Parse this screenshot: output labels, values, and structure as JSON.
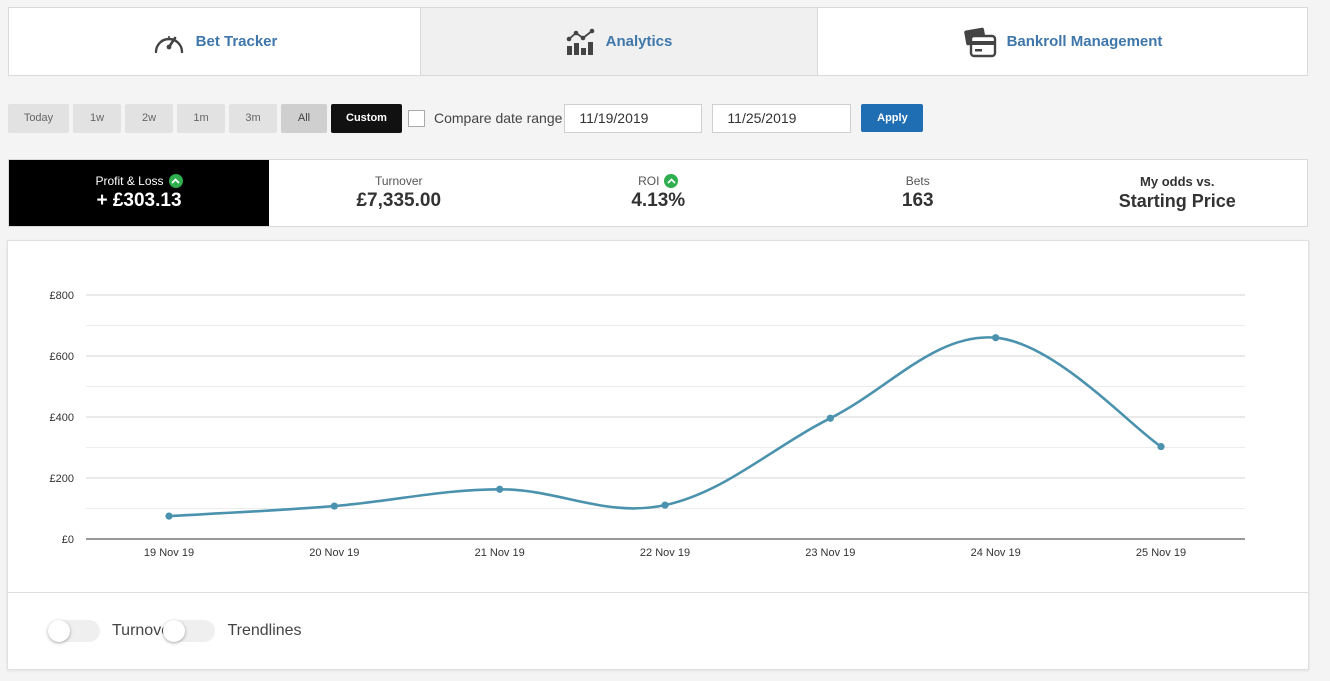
{
  "nav": {
    "tabs": [
      {
        "label": "Bet Tracker",
        "icon": "speedometer-icon"
      },
      {
        "label": "Analytics",
        "icon": "analytics-chart-icon"
      },
      {
        "label": "Bankroll Management",
        "icon": "wallet-cards-icon"
      }
    ],
    "active_tab": "Analytics",
    "link_color": "#3f77ab"
  },
  "filters": {
    "ranges": [
      "Today",
      "1w",
      "2w",
      "1m",
      "3m",
      "All",
      "Custom"
    ],
    "selected": "Custom",
    "compare_label": "Compare date range",
    "compare_checked": false,
    "date_from": "11/19/2019",
    "date_to": "11/25/2019",
    "apply_label": "Apply",
    "apply_color": "#1f6eb3"
  },
  "stats": {
    "profit_loss": {
      "label": "Profit & Loss",
      "value": "+ £303.13",
      "trend": "up"
    },
    "turnover": {
      "label": "Turnover",
      "value": "£7,335.00"
    },
    "roi": {
      "label": "ROI",
      "value": "4.13%",
      "trend": "up"
    },
    "bets": {
      "label": "Bets",
      "value": "163"
    },
    "odds": {
      "line1": "My odds vs.",
      "line2": "Starting Price"
    },
    "positive_color": "#2fae4f"
  },
  "chart_data": {
    "type": "line",
    "x": [
      "19 Nov 19",
      "20 Nov 19",
      "21 Nov 19",
      "22 Nov 19",
      "23 Nov 19",
      "24 Nov 19",
      "25 Nov 19"
    ],
    "series": [
      {
        "values": [
          75,
          108,
          163,
          111,
          396,
          660,
          303
        ],
        "color": "#4a92ad"
      }
    ],
    "ylim": [
      0,
      800
    ],
    "yticks": [
      0,
      200,
      400,
      600,
      800
    ],
    "ytick_labels": [
      "£0",
      "£200",
      "£400",
      "£600",
      "£800"
    ],
    "grid": true,
    "smooth": true
  },
  "toggles": [
    {
      "label": "Turnover",
      "on": false
    },
    {
      "label": "Trendlines",
      "on": false
    }
  ]
}
